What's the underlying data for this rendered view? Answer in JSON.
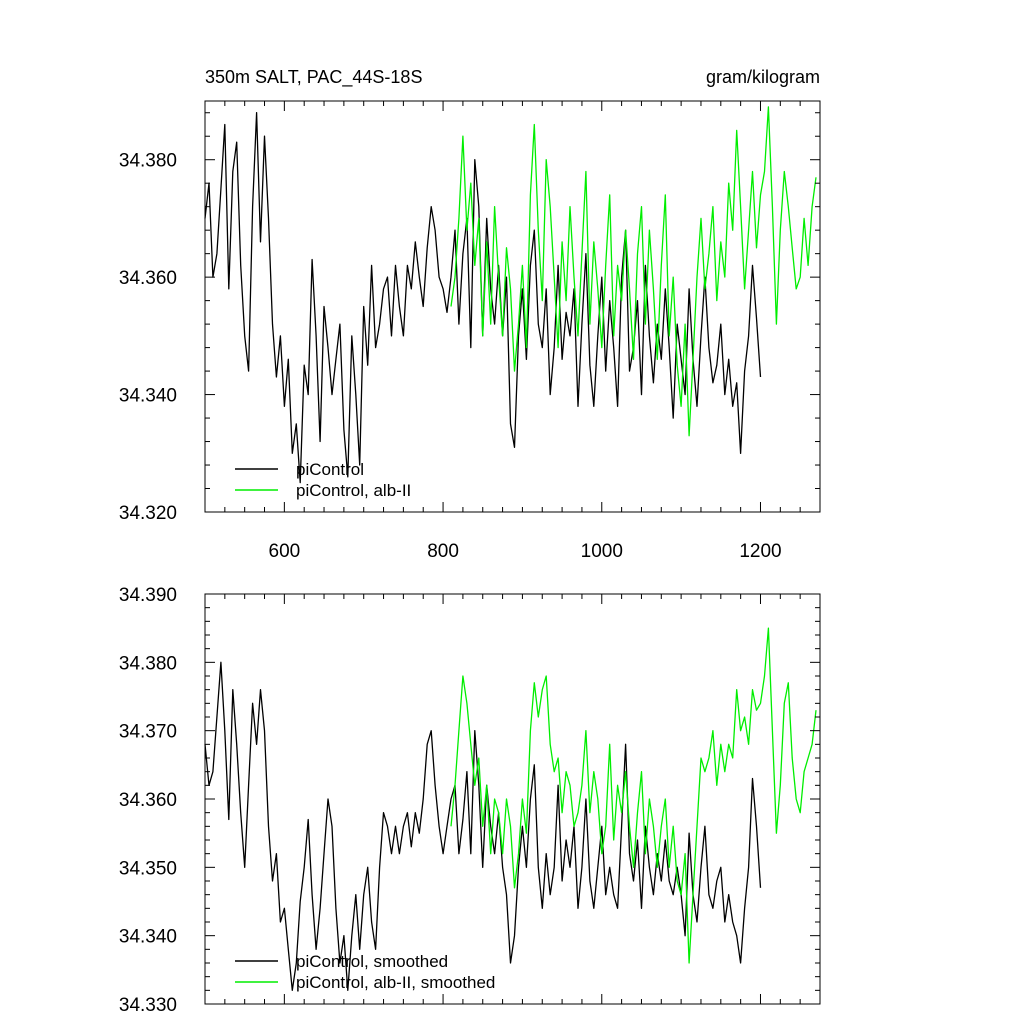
{
  "header": {
    "title": "350m SALT, PAC_44S-18S",
    "units": "gram/kilogram"
  },
  "colors": {
    "black_series": "#000000",
    "green_series": "#00ee00",
    "axes": "#000000",
    "background": "#ffffff"
  },
  "chart_data": [
    {
      "type": "line",
      "title": "350m SALT, PAC_44S-18S",
      "units_label": "gram/kilogram",
      "xlabel": "",
      "ylabel": "",
      "xlim": [
        500,
        1275
      ],
      "ylim": [
        34.32,
        34.39
      ],
      "xticks": [
        600,
        800,
        1000,
        1200
      ],
      "xtick_labels": [
        "600",
        "800",
        "1000",
        "1200"
      ],
      "yticks": [
        34.32,
        34.34,
        34.36,
        34.38
      ],
      "ytick_labels": [
        "34.320",
        "34.340",
        "34.360",
        "34.380"
      ],
      "grid": false,
      "legend_position": "bottom-left",
      "series": [
        {
          "name": "piControl",
          "color": "#000000",
          "x": [
            500,
            505,
            510,
            515,
            520,
            525,
            530,
            535,
            540,
            545,
            550,
            555,
            560,
            565,
            570,
            575,
            580,
            585,
            590,
            595,
            600,
            605,
            610,
            615,
            620,
            625,
            630,
            635,
            640,
            645,
            650,
            655,
            660,
            665,
            670,
            675,
            680,
            685,
            690,
            695,
            700,
            705,
            710,
            715,
            720,
            725,
            730,
            735,
            740,
            745,
            750,
            755,
            760,
            765,
            770,
            775,
            780,
            785,
            790,
            795,
            800,
            805,
            810,
            815,
            820,
            825,
            830,
            835,
            840,
            845,
            850,
            855,
            860,
            865,
            870,
            875,
            880,
            885,
            890,
            895,
            900,
            905,
            910,
            915,
            920,
            925,
            930,
            935,
            940,
            945,
            950,
            955,
            960,
            965,
            970,
            975,
            980,
            985,
            990,
            995,
            1000,
            1005,
            1010,
            1015,
            1020,
            1025,
            1030,
            1035,
            1040,
            1045,
            1050,
            1055,
            1060,
            1065,
            1070,
            1075,
            1080,
            1085,
            1090,
            1095,
            1100,
            1105,
            1110,
            1115,
            1120,
            1125,
            1130,
            1135,
            1140,
            1145,
            1150,
            1155,
            1160,
            1165,
            1170,
            1175,
            1180,
            1185,
            1190,
            1195,
            1200
          ],
          "y": [
            34.37,
            34.376,
            34.36,
            34.364,
            34.375,
            34.386,
            34.358,
            34.378,
            34.383,
            34.362,
            34.35,
            34.344,
            34.372,
            34.388,
            34.366,
            34.384,
            34.37,
            34.352,
            34.343,
            34.35,
            34.338,
            34.346,
            34.33,
            34.335,
            34.325,
            34.345,
            34.34,
            34.363,
            34.35,
            34.332,
            34.355,
            34.348,
            34.34,
            34.346,
            34.352,
            34.334,
            34.326,
            34.35,
            34.34,
            34.328,
            34.355,
            34.345,
            34.362,
            34.348,
            34.352,
            34.358,
            34.36,
            34.35,
            34.362,
            34.355,
            34.35,
            34.362,
            34.358,
            34.366,
            34.36,
            34.355,
            34.365,
            34.372,
            34.368,
            34.36,
            34.358,
            34.354,
            34.36,
            34.368,
            34.352,
            34.364,
            34.37,
            34.348,
            34.38,
            34.372,
            34.35,
            34.37,
            34.358,
            34.352,
            34.362,
            34.35,
            34.36,
            34.335,
            34.331,
            34.35,
            34.358,
            34.346,
            34.362,
            34.368,
            34.352,
            34.348,
            34.358,
            34.34,
            34.348,
            34.362,
            34.346,
            34.354,
            34.35,
            34.358,
            34.338,
            34.352,
            34.364,
            34.345,
            34.338,
            34.35,
            34.36,
            34.344,
            34.356,
            34.348,
            34.338,
            34.36,
            34.368,
            34.344,
            34.348,
            34.356,
            34.34,
            34.362,
            34.35,
            34.342,
            34.352,
            34.346,
            34.358,
            34.348,
            34.336,
            34.352,
            34.346,
            34.34,
            34.358,
            34.346,
            34.338,
            34.35,
            34.36,
            34.348,
            34.342,
            34.345,
            34.352,
            34.34,
            34.346,
            34.338,
            34.342,
            34.33,
            34.344,
            34.35,
            34.362,
            34.353,
            34.343
          ]
        },
        {
          "name": "piControl, alb-II",
          "color": "#00ee00",
          "x": [
            810,
            815,
            820,
            825,
            830,
            835,
            840,
            845,
            850,
            855,
            860,
            865,
            870,
            875,
            880,
            885,
            890,
            895,
            900,
            905,
            910,
            915,
            920,
            925,
            930,
            935,
            940,
            945,
            950,
            955,
            960,
            965,
            970,
            975,
            980,
            985,
            990,
            995,
            1000,
            1005,
            1010,
            1015,
            1020,
            1025,
            1030,
            1035,
            1040,
            1045,
            1050,
            1055,
            1060,
            1065,
            1070,
            1075,
            1080,
            1085,
            1090,
            1095,
            1100,
            1105,
            1110,
            1115,
            1120,
            1125,
            1130,
            1135,
            1140,
            1145,
            1150,
            1155,
            1160,
            1165,
            1170,
            1175,
            1180,
            1185,
            1190,
            1195,
            1200,
            1205,
            1210,
            1215,
            1220,
            1225,
            1230,
            1235,
            1240,
            1245,
            1250,
            1255,
            1260,
            1265,
            1270
          ],
          "y": [
            34.355,
            34.36,
            34.37,
            34.384,
            34.368,
            34.376,
            34.362,
            34.37,
            34.35,
            34.366,
            34.352,
            34.372,
            34.36,
            34.35,
            34.365,
            34.358,
            34.344,
            34.352,
            34.362,
            34.348,
            34.374,
            34.386,
            34.368,
            34.356,
            34.38,
            34.372,
            34.36,
            34.348,
            34.366,
            34.356,
            34.372,
            34.36,
            34.35,
            34.364,
            34.378,
            34.352,
            34.366,
            34.358,
            34.348,
            34.362,
            34.374,
            34.35,
            34.362,
            34.356,
            34.368,
            34.358,
            34.346,
            34.364,
            34.372,
            34.352,
            34.368,
            34.358,
            34.346,
            34.362,
            34.374,
            34.35,
            34.36,
            34.345,
            34.338,
            34.352,
            34.333,
            34.346,
            34.36,
            34.37,
            34.358,
            34.364,
            34.372,
            34.356,
            34.366,
            34.36,
            34.376,
            34.368,
            34.385,
            34.372,
            34.358,
            34.368,
            34.378,
            34.365,
            34.374,
            34.378,
            34.389,
            34.372,
            34.352,
            34.368,
            34.378,
            34.372,
            34.365,
            34.358,
            34.36,
            34.37,
            34.362,
            34.372,
            34.377
          ]
        }
      ]
    },
    {
      "type": "line",
      "title": "",
      "xlabel": "",
      "ylabel": "",
      "xlim": [
        500,
        1275
      ],
      "ylim": [
        34.33,
        34.39
      ],
      "xticks": [
        600,
        800,
        1000,
        1200
      ],
      "xtick_labels": [],
      "yticks": [
        34.33,
        34.34,
        34.35,
        34.36,
        34.37,
        34.38,
        34.39
      ],
      "ytick_labels": [
        "34.330",
        "34.340",
        "34.350",
        "34.360",
        "34.370",
        "34.380",
        "34.390"
      ],
      "grid": false,
      "legend_position": "bottom-left",
      "series": [
        {
          "name": "piControl, smoothed",
          "color": "#000000",
          "x": [
            500,
            505,
            510,
            515,
            520,
            525,
            530,
            535,
            540,
            545,
            550,
            555,
            560,
            565,
            570,
            575,
            580,
            585,
            590,
            595,
            600,
            605,
            610,
            615,
            620,
            625,
            630,
            635,
            640,
            645,
            650,
            655,
            660,
            665,
            670,
            675,
            680,
            685,
            690,
            695,
            700,
            705,
            710,
            715,
            720,
            725,
            730,
            735,
            740,
            745,
            750,
            755,
            760,
            765,
            770,
            775,
            780,
            785,
            790,
            795,
            800,
            805,
            810,
            815,
            820,
            825,
            830,
            835,
            840,
            845,
            850,
            855,
            860,
            865,
            870,
            875,
            880,
            885,
            890,
            895,
            900,
            905,
            910,
            915,
            920,
            925,
            930,
            935,
            940,
            945,
            950,
            955,
            960,
            965,
            970,
            975,
            980,
            985,
            990,
            995,
            1000,
            1005,
            1010,
            1015,
            1020,
            1025,
            1030,
            1035,
            1040,
            1045,
            1050,
            1055,
            1060,
            1065,
            1070,
            1075,
            1080,
            1085,
            1090,
            1095,
            1100,
            1105,
            1110,
            1115,
            1120,
            1125,
            1130,
            1135,
            1140,
            1145,
            1150,
            1155,
            1160,
            1165,
            1170,
            1175,
            1180,
            1185,
            1190,
            1195,
            1200
          ],
          "y": [
            34.368,
            34.362,
            34.364,
            34.372,
            34.38,
            34.37,
            34.357,
            34.376,
            34.368,
            34.358,
            34.35,
            34.362,
            34.374,
            34.368,
            34.376,
            34.37,
            34.356,
            34.348,
            34.352,
            34.342,
            34.344,
            34.338,
            34.332,
            34.336,
            34.345,
            34.35,
            34.357,
            34.346,
            34.338,
            34.344,
            34.352,
            34.36,
            34.356,
            34.344,
            34.336,
            34.34,
            34.332,
            34.34,
            34.346,
            34.338,
            34.346,
            34.35,
            34.342,
            34.338,
            34.35,
            34.358,
            34.356,
            34.352,
            34.356,
            34.352,
            34.356,
            34.358,
            34.353,
            34.358,
            34.355,
            34.36,
            34.368,
            34.37,
            34.362,
            34.356,
            34.352,
            34.356,
            34.36,
            34.362,
            34.352,
            34.357,
            34.364,
            34.352,
            34.37,
            34.362,
            34.35,
            34.362,
            34.356,
            34.352,
            34.358,
            34.35,
            34.346,
            34.336,
            34.34,
            34.35,
            34.356,
            34.35,
            34.36,
            34.365,
            34.35,
            34.344,
            34.352,
            34.346,
            34.35,
            34.362,
            34.348,
            34.354,
            34.35,
            34.356,
            34.344,
            34.35,
            34.36,
            34.348,
            34.344,
            34.35,
            34.356,
            34.346,
            34.35,
            34.346,
            34.344,
            34.356,
            34.368,
            34.352,
            34.348,
            34.354,
            34.344,
            34.356,
            34.35,
            34.346,
            34.352,
            34.348,
            34.354,
            34.348,
            34.346,
            34.35,
            34.346,
            34.34,
            34.355,
            34.346,
            34.342,
            34.35,
            34.356,
            34.346,
            34.344,
            34.348,
            34.35,
            34.342,
            34.346,
            34.342,
            34.34,
            34.336,
            34.344,
            34.35,
            34.363,
            34.356,
            34.347
          ]
        },
        {
          "name": "piControl, alb-II, smoothed",
          "color": "#00ee00",
          "x": [
            810,
            815,
            820,
            825,
            830,
            835,
            840,
            845,
            850,
            855,
            860,
            865,
            870,
            875,
            880,
            885,
            890,
            895,
            900,
            905,
            910,
            915,
            920,
            925,
            930,
            935,
            940,
            945,
            950,
            955,
            960,
            965,
            970,
            975,
            980,
            985,
            990,
            995,
            1000,
            1005,
            1010,
            1015,
            1020,
            1025,
            1030,
            1035,
            1040,
            1045,
            1050,
            1055,
            1060,
            1065,
            1070,
            1075,
            1080,
            1085,
            1090,
            1095,
            1100,
            1105,
            1110,
            1115,
            1120,
            1125,
            1130,
            1135,
            1140,
            1145,
            1150,
            1155,
            1160,
            1165,
            1170,
            1175,
            1180,
            1185,
            1190,
            1195,
            1200,
            1205,
            1210,
            1215,
            1220,
            1225,
            1230,
            1235,
            1240,
            1245,
            1250,
            1255,
            1260,
            1265,
            1270
          ],
          "y": [
            34.356,
            34.362,
            34.37,
            34.378,
            34.374,
            34.368,
            34.362,
            34.366,
            34.356,
            34.362,
            34.352,
            34.36,
            34.358,
            34.352,
            34.36,
            34.356,
            34.347,
            34.352,
            34.36,
            34.355,
            34.37,
            34.377,
            34.372,
            34.376,
            34.378,
            34.368,
            34.364,
            34.366,
            34.358,
            34.364,
            34.362,
            34.356,
            34.358,
            34.362,
            34.37,
            34.358,
            34.364,
            34.36,
            34.352,
            34.356,
            34.368,
            34.354,
            34.362,
            34.358,
            34.364,
            34.356,
            34.35,
            34.358,
            34.364,
            34.352,
            34.36,
            34.356,
            34.35,
            34.356,
            34.36,
            34.35,
            34.356,
            34.348,
            34.346,
            34.352,
            34.336,
            34.346,
            34.356,
            34.366,
            34.364,
            34.366,
            34.37,
            34.362,
            34.368,
            34.364,
            34.368,
            34.366,
            34.376,
            34.37,
            34.372,
            34.368,
            34.376,
            34.373,
            34.374,
            34.378,
            34.385,
            34.37,
            34.355,
            34.362,
            34.374,
            34.377,
            34.366,
            34.36,
            34.358,
            34.364,
            34.366,
            34.368,
            34.373
          ]
        }
      ]
    }
  ]
}
